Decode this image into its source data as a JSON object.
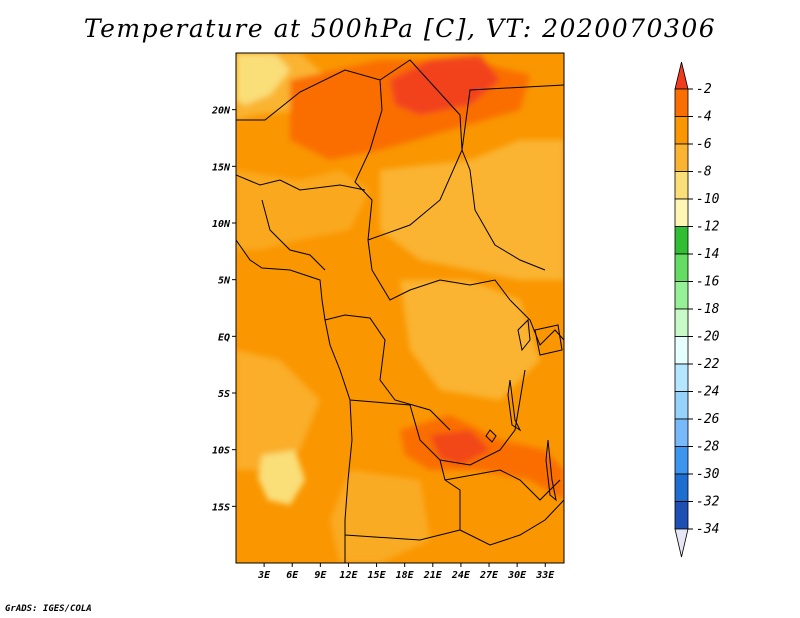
{
  "title": "Temperature at 500hPa [C], VT: 2020070306",
  "credit": "GrADS: IGES/COLA",
  "map": {
    "lon_range": [
      0,
      35
    ],
    "lat_range": [
      -20,
      25
    ],
    "x_ticks": [
      "3E",
      "6E",
      "9E",
      "12E",
      "15E",
      "18E",
      "21E",
      "24E",
      "27E",
      "30E",
      "33E"
    ],
    "x_tick_values": [
      3,
      6,
      9,
      12,
      15,
      18,
      21,
      24,
      27,
      30,
      33
    ],
    "y_ticks": [
      "20N",
      "15N",
      "10N",
      "5N",
      "EQ",
      "5S",
      "10S",
      "15S"
    ],
    "y_tick_values": [
      20,
      15,
      10,
      5,
      0,
      -5,
      -10,
      -15
    ]
  },
  "colorbar": {
    "labels": [
      "-2",
      "-4",
      "-6",
      "-8",
      "-10",
      "-12",
      "-14",
      "-16",
      "-18",
      "-20",
      "-22",
      "-24",
      "-26",
      "-28",
      "-30",
      "-32",
      "-34"
    ],
    "colors": [
      "#f03c1e",
      "#fa6e00",
      "#fa9600",
      "#fab432",
      "#fade78",
      "#fff5b4",
      "#32be32",
      "#64dc64",
      "#96f096",
      "#c8fac8",
      "#e6ffff",
      "#b4e6ff",
      "#96d2fa",
      "#78b9fa",
      "#3c96f0",
      "#1e6ed2",
      "#1e50b4",
      "#0a1464"
    ]
  }
}
